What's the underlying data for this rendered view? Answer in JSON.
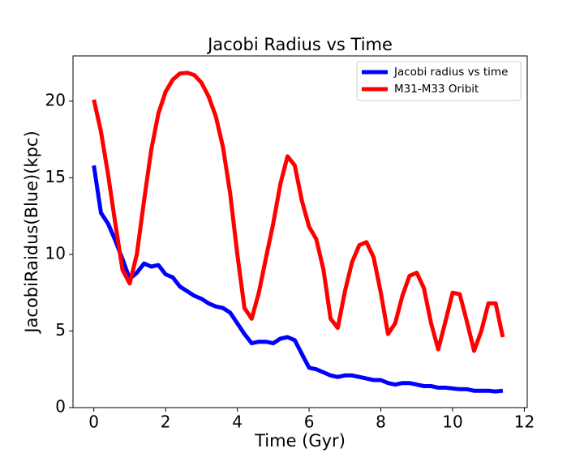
{
  "chart_data": {
    "type": "line",
    "title": "Jacobi Radius vs Time",
    "x_label": "Time (Gyr)",
    "y_label": "JacobiRaidus(Blue)(kpc)",
    "x": [
      0,
      0.2,
      0.4,
      0.6,
      0.8,
      1.0,
      1.2,
      1.4,
      1.6,
      1.8,
      2.0,
      2.2,
      2.4,
      2.6,
      2.8,
      3.0,
      3.2,
      3.4,
      3.6,
      3.8,
      4.0,
      4.2,
      4.4,
      4.6,
      4.8,
      5.0,
      5.2,
      5.4,
      5.6,
      5.8,
      6.0,
      6.2,
      6.4,
      6.6,
      6.8,
      7.0,
      7.2,
      7.4,
      7.6,
      7.8,
      8.0,
      8.2,
      8.4,
      8.6,
      8.8,
      9.0,
      9.2,
      9.4,
      9.6,
      9.8,
      10.0,
      10.2,
      10.4,
      10.6,
      10.8,
      11.0,
      11.2,
      11.4
    ],
    "series": [
      {
        "name": "Jacobi radius vs time",
        "color": "#0000ff",
        "values": [
          15.8,
          12.7,
          12.0,
          10.9,
          9.7,
          8.4,
          8.8,
          9.4,
          9.2,
          9.3,
          8.7,
          8.5,
          7.9,
          7.6,
          7.3,
          7.1,
          6.8,
          6.6,
          6.5,
          6.2,
          5.5,
          4.8,
          4.2,
          4.3,
          4.3,
          4.2,
          4.5,
          4.6,
          4.4,
          3.5,
          2.6,
          2.5,
          2.3,
          2.1,
          2.0,
          2.1,
          2.1,
          2.0,
          1.9,
          1.8,
          1.8,
          1.6,
          1.5,
          1.6,
          1.6,
          1.5,
          1.4,
          1.4,
          1.3,
          1.3,
          1.25,
          1.2,
          1.2,
          1.1,
          1.1,
          1.1,
          1.05,
          1.1
        ]
      },
      {
        "name": "M31-M33 Oribit",
        "color": "#ff0000",
        "values": [
          20.1,
          18.0,
          15.2,
          12.0,
          9.0,
          8.1,
          10.0,
          13.5,
          16.8,
          19.2,
          20.6,
          21.4,
          21.8,
          21.85,
          21.7,
          21.2,
          20.3,
          19.0,
          17.0,
          14.0,
          10.0,
          6.5,
          5.8,
          7.5,
          9.8,
          12.0,
          14.6,
          16.4,
          15.8,
          13.5,
          11.8,
          11.0,
          9.0,
          5.8,
          5.2,
          7.6,
          9.5,
          10.6,
          10.8,
          9.8,
          7.5,
          4.8,
          5.5,
          7.3,
          8.6,
          8.8,
          7.8,
          5.5,
          3.8,
          5.6,
          7.5,
          7.4,
          5.6,
          3.7,
          5.0,
          6.8,
          6.8,
          4.6
        ]
      }
    ],
    "xlim": [
      -0.58,
      12.08
    ],
    "xticks": [
      0,
      2,
      4,
      6,
      8,
      10,
      12
    ],
    "ylim": [
      0,
      22.95
    ],
    "yticks": [
      0,
      5,
      10,
      15,
      20
    ],
    "legend": "upper right"
  }
}
